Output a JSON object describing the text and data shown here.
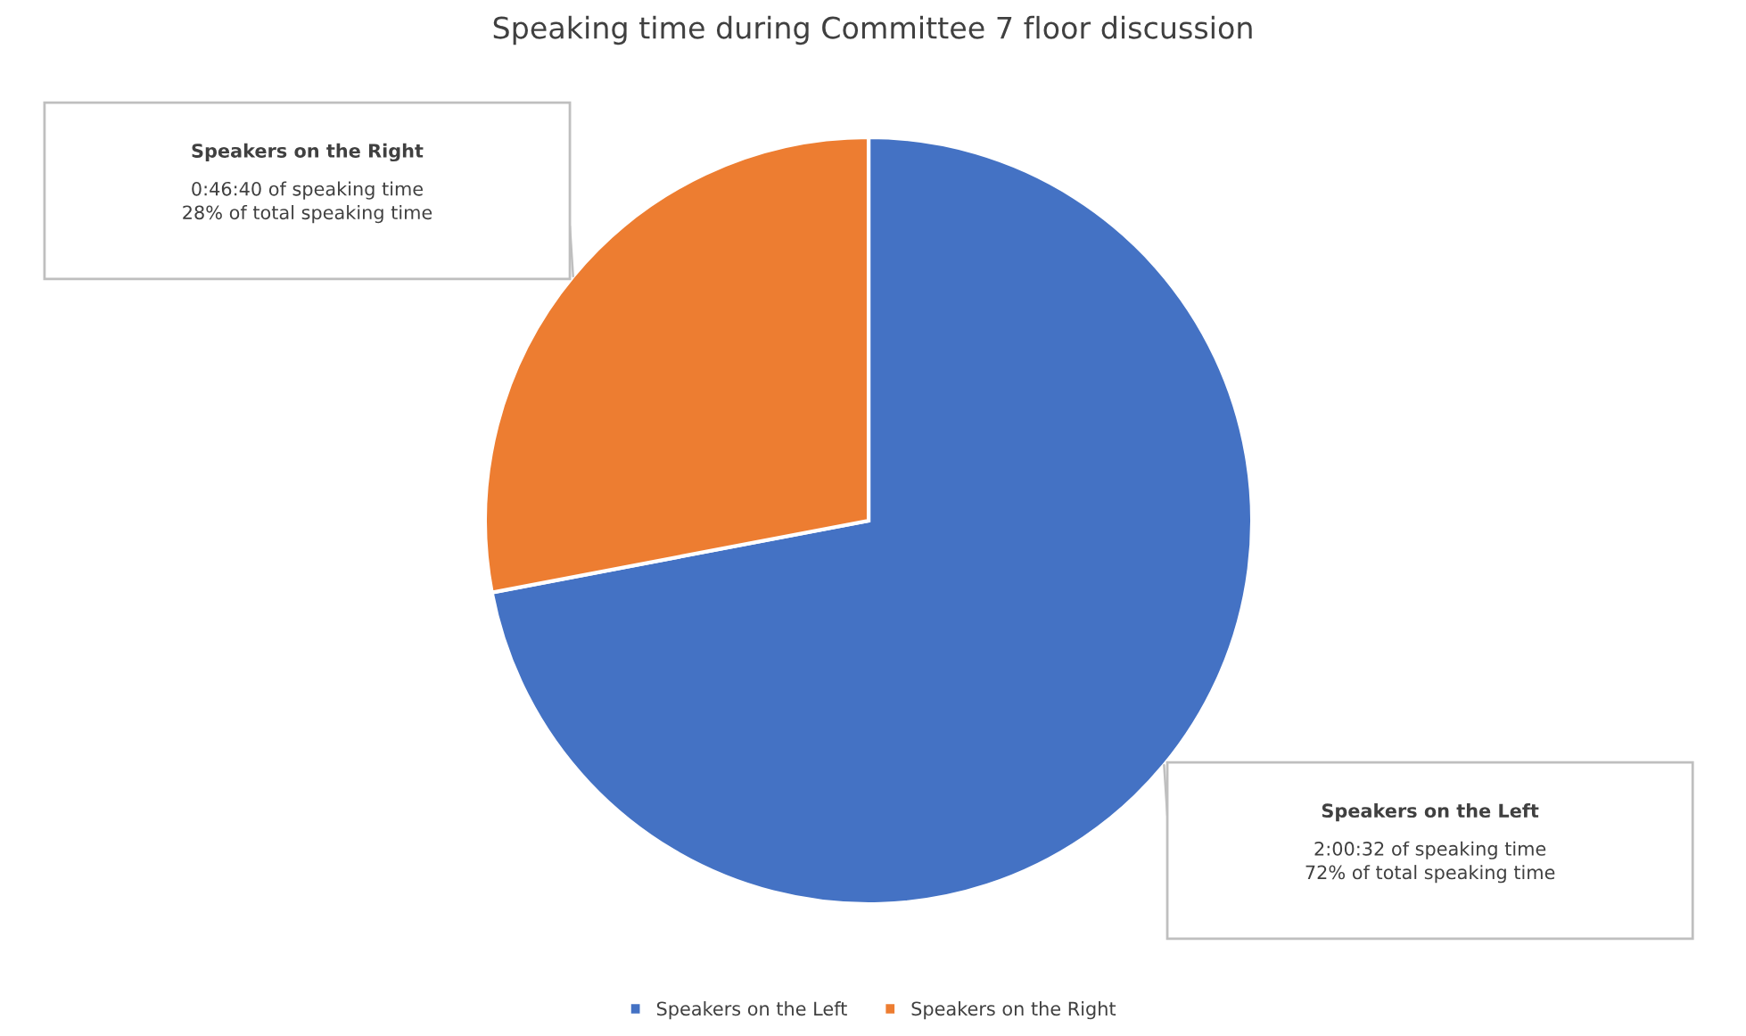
{
  "chart_data": {
    "type": "pie",
    "title": "Speaking time during Committee 7 floor discussion",
    "categories": [
      "Speakers on the Left",
      "Speakers on the Right"
    ],
    "values": [
      72,
      28
    ],
    "colors": [
      "#4472c4",
      "#ed7d31"
    ],
    "value_labels": [
      "2:00:32 of speaking time\n72% of total speaking time",
      "0:46:40 of speaking time\n28% of total speaking time"
    ],
    "legend": "bottom"
  }
}
